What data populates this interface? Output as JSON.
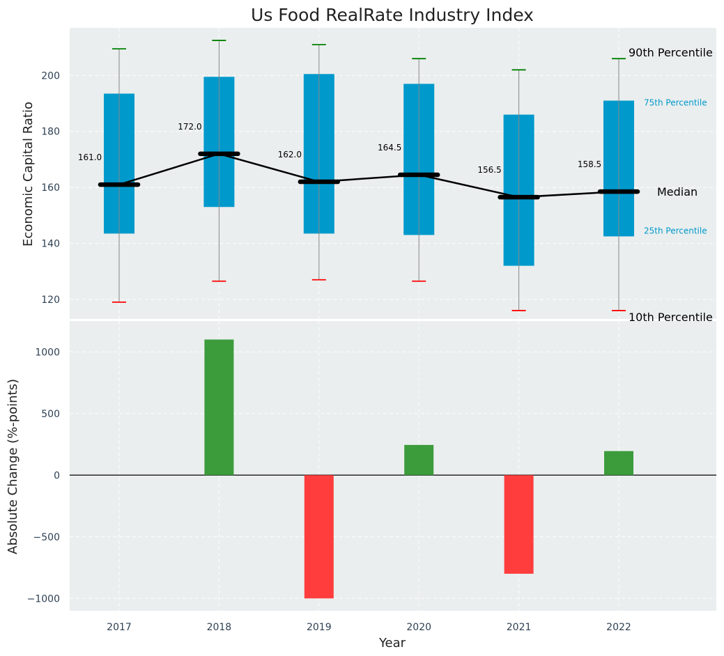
{
  "chart_data": {
    "title": "Us Food RealRate Industry Index",
    "xlabel": "Year",
    "categories": [
      "2017",
      "2018",
      "2019",
      "2020",
      "2021",
      "2022"
    ],
    "colors": {
      "box": "#0099cc",
      "median": "#000000",
      "whisker": "#888888",
      "p90_cap": "#008000",
      "p10_cap": "#ff0000",
      "bar_positive": "#3c9c3c",
      "bar_negative": "#ff3d3d",
      "panel_bg": "#eaeeee",
      "percentile_label_box": "#0099cc"
    },
    "top_panel": {
      "type": "box",
      "ylabel": "Economic Capital Ratio",
      "ylim": [
        113,
        217
      ],
      "yticks": [
        120,
        140,
        160,
        180,
        200
      ],
      "p10": [
        119,
        126.5,
        127,
        126.5,
        116,
        116
      ],
      "p25": [
        143.5,
        153,
        143.5,
        143,
        132,
        142.5
      ],
      "median": [
        161.0,
        172.0,
        162.0,
        164.5,
        156.5,
        158.5
      ],
      "p75": [
        193.5,
        199.5,
        200.5,
        197,
        186,
        191
      ],
      "p90": [
        209.5,
        212.5,
        211,
        206,
        202,
        206
      ],
      "median_labels": [
        "161.0",
        "172.0",
        "162.0",
        "164.5",
        "156.5",
        "158.5"
      ],
      "legend_labels": {
        "p90": "90th Percentile",
        "p75": "75th Percentile",
        "median": "Median",
        "p25": "25th Percentile",
        "p10": "10th Percentile"
      }
    },
    "bottom_panel": {
      "type": "bar",
      "ylabel": "Absolute Change (%-points)",
      "ylim": [
        -1100,
        1250
      ],
      "yticks": [
        -1000,
        -500,
        0,
        500,
        1000
      ],
      "ytick_labels": [
        "−1000",
        "−500",
        "0",
        "500",
        "1000"
      ],
      "values": [
        0,
        1100,
        -1000,
        245,
        -800,
        195
      ]
    }
  }
}
